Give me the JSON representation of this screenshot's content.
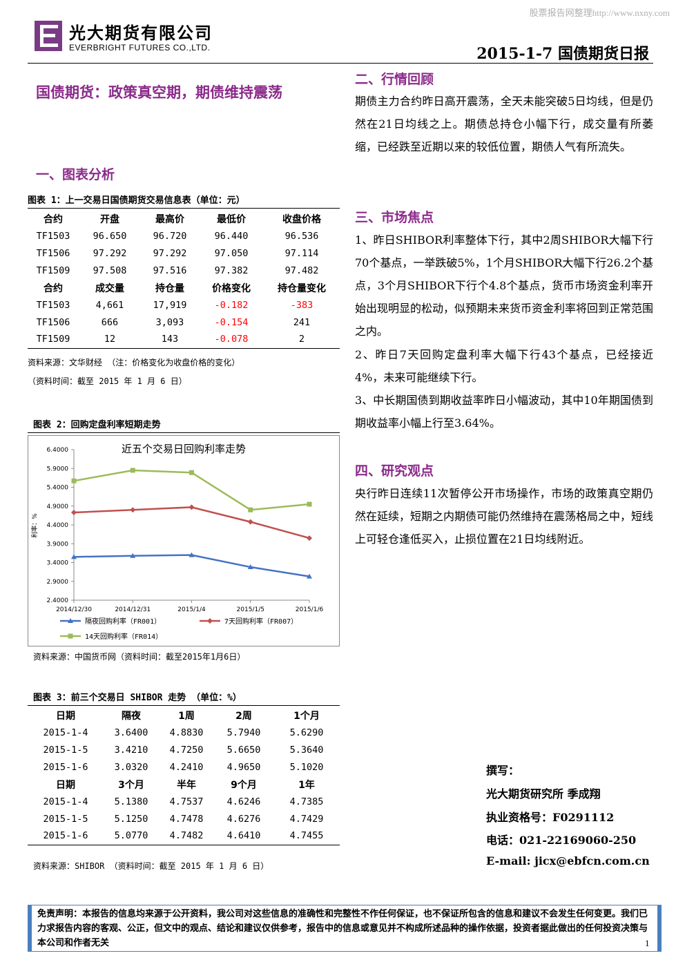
{
  "watermark": "股票报告网整理http://www.nxny.com",
  "header": {
    "company_cn": "光大期货有限公司",
    "company_en": "EVERBRIGHT FUTURES CO.,LTD.",
    "doc_title": "2015-1-7  国债期货日报"
  },
  "main_title": "国债期货：政策真空期，期债维持震荡",
  "sections": {
    "s1": "一、图表分析",
    "s2": "二、行情回顾",
    "s3": "三、市场焦点",
    "s4": "四、研究观点"
  },
  "table1": {
    "caption": "图表 1：上一交易日国债期货交易信息表（单位：元）",
    "header1": [
      "合约",
      "开盘",
      "最高价",
      "最低价",
      "收盘价格"
    ],
    "rows1": [
      [
        "TF1503",
        "96.650",
        "96.720",
        "96.440",
        "96.536"
      ],
      [
        "TF1506",
        "97.292",
        "97.292",
        "97.050",
        "97.114"
      ],
      [
        "TF1509",
        "97.508",
        "97.516",
        "97.382",
        "97.482"
      ]
    ],
    "header2": [
      "合约",
      "成交量",
      "持仓量",
      "价格变化",
      "持仓量变化"
    ],
    "rows2": [
      [
        "TF1503",
        "4,661",
        "17,919",
        "-0.182",
        "-383"
      ],
      [
        "TF1506",
        "666",
        "3,093",
        "-0.154",
        "241"
      ],
      [
        "TF1509",
        "12",
        "143",
        "-0.078",
        "2"
      ]
    ],
    "source": "资料来源：文华财经 （注：价格变化为收盘价格的变化）",
    "time": "（资料时间：截至 2015 年 1 月 6 日）"
  },
  "chart_caption": "图表 2：回购定盘利率短期走势",
  "chart_source": "资料来源：中国货币网（资料时间：截至2015年1月6日）",
  "chart_data": {
    "type": "line",
    "title": "近五个交易日回购利率走势",
    "ylabel": "利率：%",
    "xlabel": "",
    "categories": [
      "2014/12/30",
      "2014/12/31",
      "2015/1/4",
      "2015/1/5",
      "2015/1/6"
    ],
    "ylim": [
      2.4,
      6.4
    ],
    "yticks": [
      "6.4000",
      "5.9000",
      "5.4000",
      "4.9000",
      "4.4000",
      "3.9000",
      "3.4000",
      "2.9000",
      "2.4000"
    ],
    "series": [
      {
        "name": "隔夜回购利率（FR001）",
        "color": "#4472c4",
        "marker": "triangle",
        "values": [
          3.55,
          3.58,
          3.6,
          3.28,
          3.03
        ]
      },
      {
        "name": "7天回购利率（FR007）",
        "color": "#c0504d",
        "marker": "diamond",
        "values": [
          4.73,
          4.8,
          4.87,
          4.48,
          4.05
        ]
      },
      {
        "name": "14天回购利率（FR014）",
        "color": "#9bbb59",
        "marker": "square",
        "values": [
          5.57,
          5.85,
          5.79,
          4.8,
          4.95
        ]
      }
    ],
    "grid": false,
    "legend": "bottom"
  },
  "table3": {
    "caption": "图表 3：前三个交易日 SHIBOR 走势 （单位：%）",
    "header1": [
      "日期",
      "隔夜",
      "1周",
      "2周",
      "1个月"
    ],
    "rows1": [
      [
        "2015-1-4",
        "3.6400",
        "4.8830",
        "5.7940",
        "5.6290"
      ],
      [
        "2015-1-5",
        "3.4210",
        "4.7250",
        "5.6650",
        "5.3640"
      ],
      [
        "2015-1-6",
        "3.0320",
        "4.2410",
        "4.9650",
        "5.1020"
      ]
    ],
    "header2": [
      "日期",
      "3个月",
      "半年",
      "9个月",
      "1年"
    ],
    "rows2": [
      [
        "2015-1-4",
        "5.1380",
        "4.7537",
        "4.6246",
        "4.7385"
      ],
      [
        "2015-1-5",
        "5.1250",
        "4.7478",
        "4.6276",
        "4.7429"
      ],
      [
        "2015-1-6",
        "5.0770",
        "4.7482",
        "4.6410",
        "4.7455"
      ]
    ],
    "source": "资料来源：SHIBOR （资料时间：截至 2015 年 1 月 6 日）"
  },
  "market_review": "期债主力合约昨日高开震荡，全天未能突破5日均线，但是仍然在21日均线之上。期债总持仓小幅下行，成交量有所萎缩，已经跌至近期以来的较低位置，期债人气有所流失。",
  "focus": [
    "1、昨日SHIBOR利率整体下行，其中2周SHIBOR大幅下行70个基点，一举跌破5%，1个月SHIBOR大幅下行26.2个基点，3个月SHIBOR下行个4.8个基点，货币市场资金利率开始出现明显的松动，似预期未来货币资金利率将回到正常范围之内。",
    "2、昨日7天回购定盘利率大幅下行43个基点，已经接近4%，未来可能继续下行。",
    "3、中长期国债到期收益率昨日小幅波动，其中10年期国债到期收益率小幅上行至3.64%。"
  ],
  "viewpoint": "央行昨日连续11次暂停公开市场操作，市场的政策真空期仍然在延续，短期之内期债可能仍然维持在震荡格局之中，短线上可轻仓逢低买入，止损位置在21日均线附近。",
  "author": {
    "label": "撰写：",
    "org": "光大期货研究所 季成翔",
    "license": "执业资格号：F0291112",
    "phone": "电话：021-22169060-250",
    "email": "E-mail: jicx@ebfcn.com.cn"
  },
  "disclaimer": "免责声明：本报告的信息均来源于公开资料，我公司对这些信息的准确性和完整性不作任何保证，也不保证所包含的信息和建议不会发生任何变更。我们已力求报告内容的客观、公正，但文中的观点、结论和建议仅供参考，报告中的信息或意见并不构成所述品种的操作依据，投资者据此做出的任何投资决策与本公司和作者无关",
  "page_number": "1",
  "colors": {
    "accent": "#8b2a8a",
    "negative": "#ff0000",
    "border": "#4a7fbf"
  }
}
